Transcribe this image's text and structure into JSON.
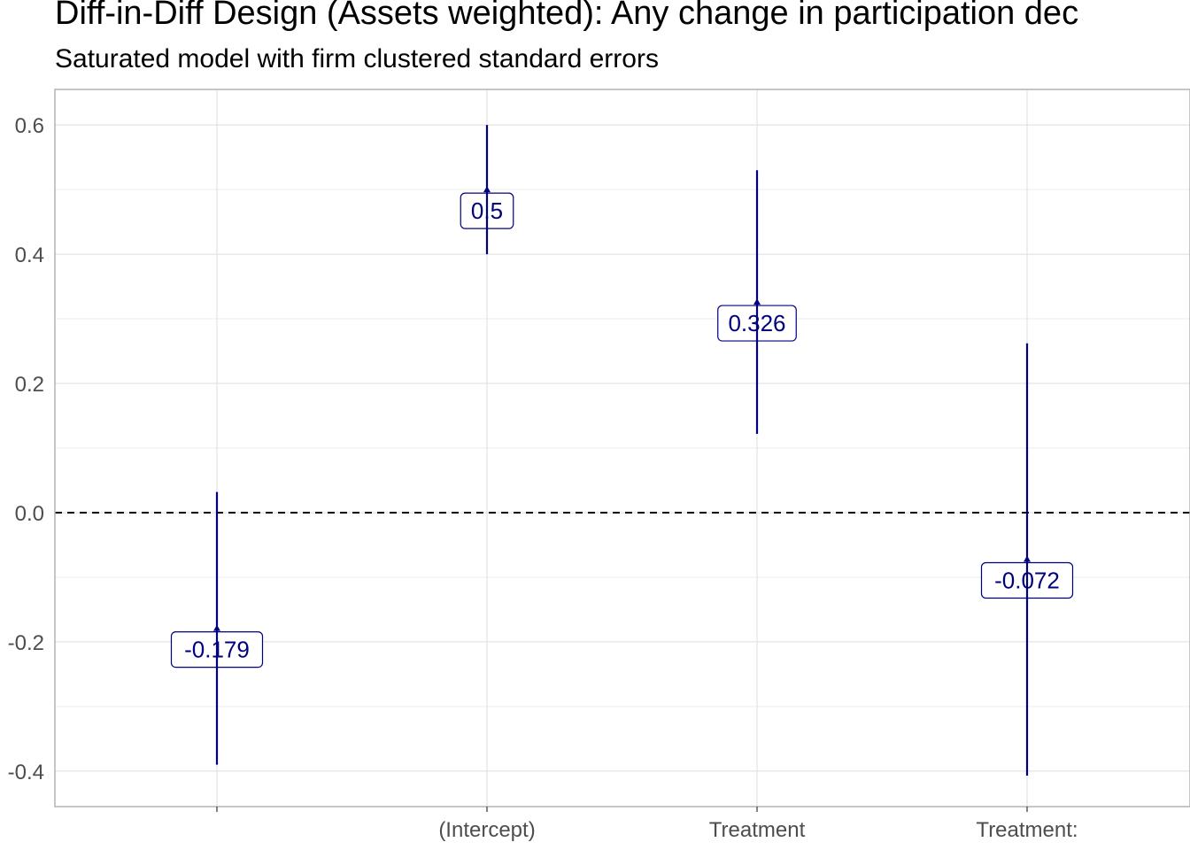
{
  "chart_data": {
    "type": "pointrange",
    "title": "Diff-in-Diff Design (Assets weighted): Any change in participation dec",
    "subtitle": "Saturated model with firm clustered standard errors",
    "xlabel": "",
    "ylabel": "",
    "categories": [
      "",
      "(Intercept)",
      "Treatment",
      "Treatment:"
    ],
    "series": [
      {
        "estimates": [
          -0.179,
          0.5,
          0.326,
          -0.072
        ],
        "lower": [
          -0.39,
          0.4,
          0.122,
          -0.407
        ],
        "upper": [
          0.032,
          0.6,
          0.53,
          0.262
        ],
        "labels": [
          "-0.179",
          "0.5",
          "0.326",
          "-0.072"
        ]
      }
    ],
    "ylim": [
      -0.455,
      0.655
    ],
    "yticks": [
      -0.4,
      -0.2,
      0.0,
      0.2,
      0.4,
      0.6
    ],
    "ytick_labels": [
      "-0.4",
      "-0.2",
      "0.0",
      "0.2",
      "0.4",
      "0.6"
    ],
    "reference_line": {
      "y": 0,
      "style": "dashed"
    },
    "grid": true,
    "legend": "none",
    "colors": {
      "series": "#00007f",
      "reference_line": "#000000",
      "grid_major": "#dedede",
      "grid_minor": "#ececec",
      "axis_text": "#4d4d4d"
    }
  }
}
